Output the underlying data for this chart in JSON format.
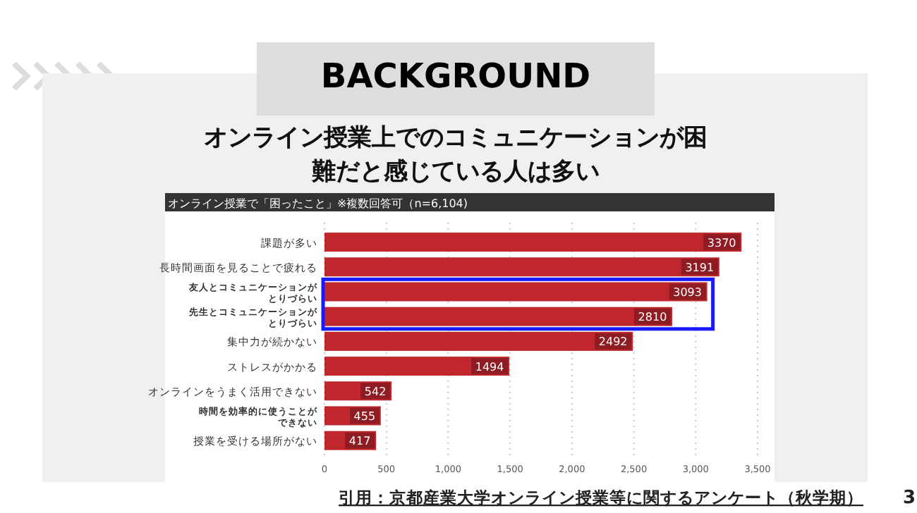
{
  "chart_data": {
    "type": "bar",
    "orientation": "horizontal",
    "title": "BACKGROUND",
    "subtitle": "オンライン授業上でのコミュニケーションが困難だと感じている人は多い",
    "annotations": [
      "オンライン授業で「困ったこと」※複数回答可（n=6,104)",
      "引用：京都産業大学オンライン授業等に関するアンケート（秋学期）",
      "3"
    ],
    "categories": [
      "課題が多い",
      "長時間画面を見ることで疲れる",
      "友人とコミュニケーションがとりづらい",
      "先生とコミュニケーションがとりづらい",
      "集中力が続かない",
      "ストレスがかかる",
      "オンラインをうまく活用できない",
      "時間を効率的に使うことができない",
      "授業を受ける場所がない"
    ],
    "values": [
      3370,
      3191,
      3093,
      2810,
      2492,
      1494,
      542,
      455,
      417
    ],
    "color": "#c0272d",
    "data_labels": true,
    "grid": "x",
    "xlim": [
      0,
      3500
    ],
    "xticks": [
      0,
      500,
      {
        "value": 1000,
        "label": "1,000"
      },
      {
        "value": 1500,
        "label": "1,500"
      },
      {
        "value": 2000,
        "label": "2,000"
      },
      {
        "value": 2500,
        "label": "2,500"
      },
      {
        "value": 3000,
        "label": "3,000"
      },
      {
        "value": 3500,
        "label": "3,500"
      }
    ]
  }
}
